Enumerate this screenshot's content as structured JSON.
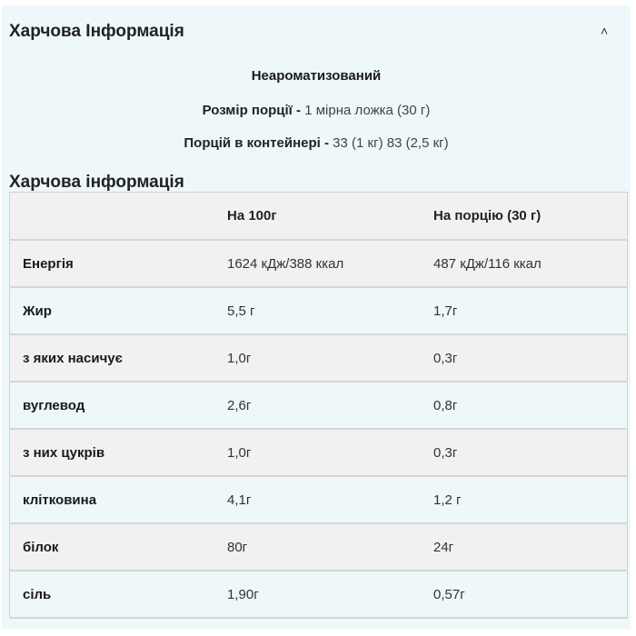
{
  "section": {
    "title": "Харчова Інформація",
    "toggle_icon": "chevron-up-icon"
  },
  "flavour": "Неароматизований",
  "serving_size": {
    "label": "Розмір порції",
    "value": "1 мірна ложка (30 г)"
  },
  "servings_per_container": {
    "label": "Порцій в контейнері",
    "value": "33 (1 кг) 83 (2,5 кг)"
  },
  "table": {
    "title": "Харчова інформація",
    "headers": [
      "",
      "На 100г",
      "На порцію (30 г)"
    ],
    "rows": [
      [
        "Енергія",
        "1624 кДж/388 ккал",
        "487 кДж/116 ккал"
      ],
      [
        "Жир",
        "5,5 г",
        "1,7г"
      ],
      [
        "з яких насичує",
        "1,0г",
        "0,3г"
      ],
      [
        "вуглевод",
        "2,6г",
        "0,8г"
      ],
      [
        "з них цукрів",
        "1,0г",
        "0,3г"
      ],
      [
        "клітковина",
        "4,1г",
        "1,2 г"
      ],
      [
        "білок",
        "80г",
        "24г"
      ],
      [
        "сіль",
        "1,90г",
        "0,57г"
      ]
    ]
  }
}
